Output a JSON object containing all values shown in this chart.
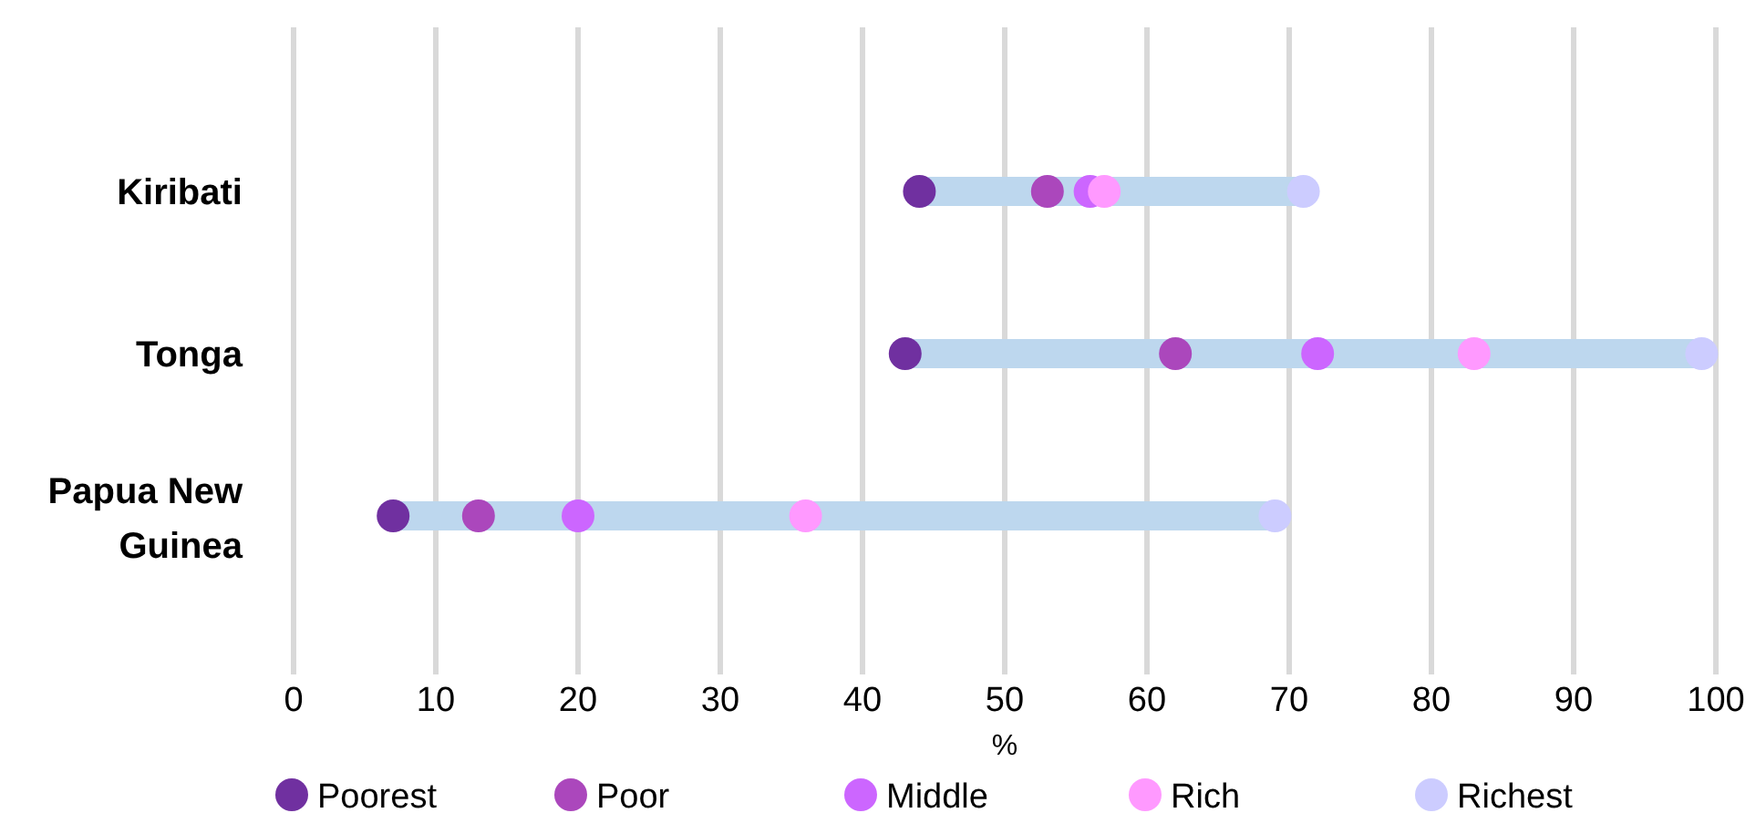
{
  "chart_data": {
    "type": "scatter",
    "orientation": "horizontal",
    "categories": [
      "Kiribati",
      "Tonga",
      "Papua New Guinea"
    ],
    "xlabel": "%",
    "xlim": [
      0,
      100
    ],
    "xticks": [
      0,
      10,
      20,
      30,
      40,
      50,
      60,
      70,
      80,
      90,
      100
    ],
    "grid": "x",
    "legend": "bottom",
    "marker": "circle",
    "series": [
      {
        "name": "Poorest",
        "color": "#7030a0",
        "values": [
          44,
          43,
          7
        ]
      },
      {
        "name": "Poor",
        "color": "#ab47bc",
        "values": [
          53,
          62,
          13
        ]
      },
      {
        "name": "Middle",
        "color": "#cc66ff",
        "values": [
          56,
          72,
          20
        ]
      },
      {
        "name": "Rich",
        "color": "#ff99ff",
        "values": [
          57,
          83,
          36
        ]
      },
      {
        "name": "Richest",
        "color": "#ccccff",
        "values": [
          71,
          99,
          69
        ]
      }
    ]
  }
}
